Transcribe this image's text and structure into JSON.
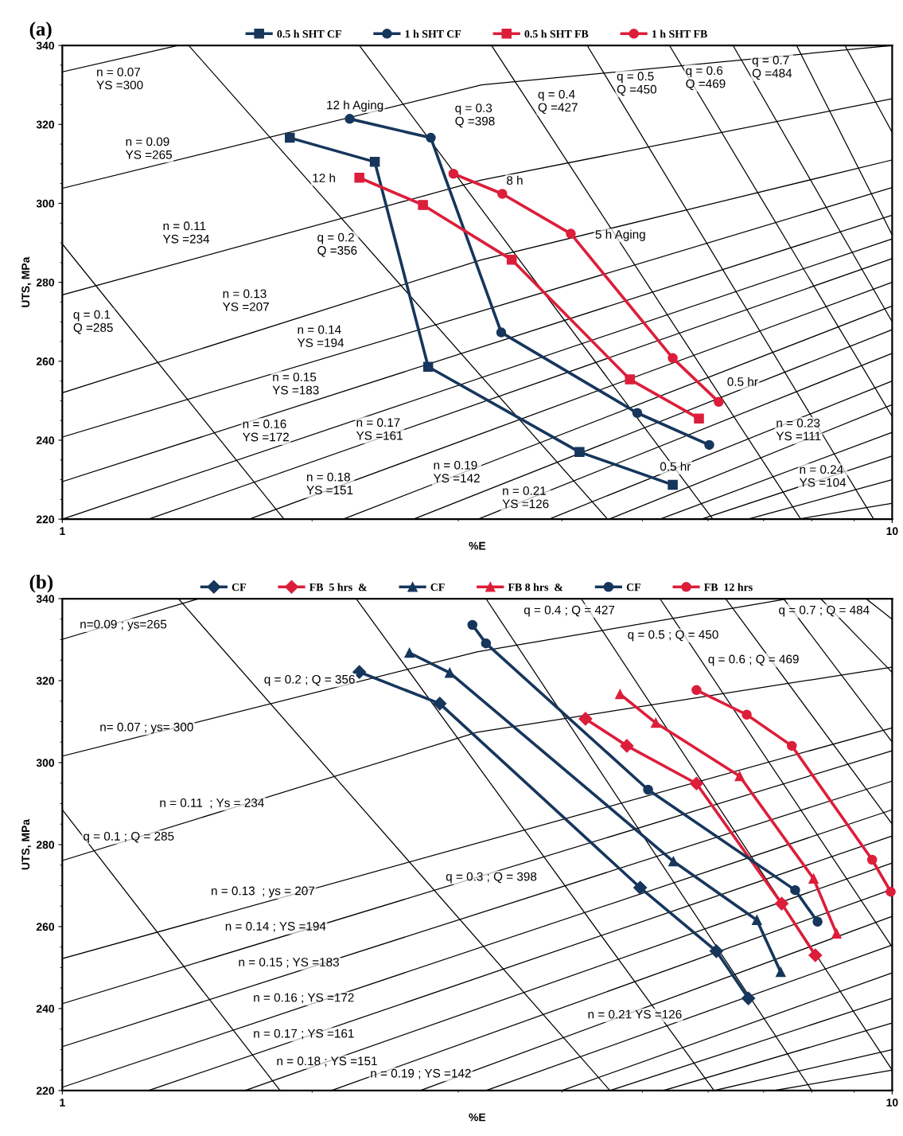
{
  "chart_data": [
    {
      "type": "line",
      "title": "(a)",
      "xlabel": "%E",
      "ylabel": "UTS, MPa",
      "log": "x",
      "xlim": [
        1,
        10
      ],
      "xticks": [
        1,
        10
      ],
      "ylim": [
        220,
        340
      ],
      "yticks": [
        220,
        240,
        260,
        280,
        300,
        320,
        340
      ],
      "legend": "top",
      "series": [
        {
          "name": "0.5 h SHT CF",
          "color": "#16365c",
          "marker": "square",
          "x": [
            1.88,
            2.38,
            2.76,
            4.2,
            5.44
          ],
          "values": [
            316.6,
            310.5,
            258.6,
            237,
            228.7
          ]
        },
        {
          "name": "1 h SHT CF",
          "color": "#16365c",
          "marker": "circle",
          "x": [
            2.22,
            2.78,
            3.38,
            4.93,
            6.02
          ],
          "values": [
            321.4,
            316.6,
            267.3,
            246.9,
            238.8
          ]
        },
        {
          "name": "0.5 h SHT FB",
          "color": "#dc1e3a",
          "marker": "square",
          "x": [
            2.28,
            2.72,
            3.48,
            4.83,
            5.85
          ],
          "values": [
            306.5,
            299.6,
            285.7,
            255.4,
            245.5
          ]
        },
        {
          "name": "1 h SHT FB",
          "color": "#dc1e3a",
          "marker": "circle",
          "x": [
            2.96,
            3.39,
            4.1,
            5.44,
            6.18
          ],
          "values": [
            307.5,
            302.4,
            292.3,
            260.8,
            249.7
          ]
        },
        {
          "color": "#000000",
          "marker": "none",
          "x": [
            1,
            1.38
          ],
          "values": [
            333.3,
            340
          ]
        },
        {
          "color": "#000000",
          "marker": "none",
          "x": [
            1,
            3.2,
            10
          ],
          "values": [
            303.8,
            330,
            340
          ]
        },
        {
          "color": "#000000",
          "marker": "none",
          "x": [
            1,
            3.2,
            10
          ],
          "values": [
            276.8,
            305.9,
            326.5
          ]
        },
        {
          "color": "#000000",
          "marker": "none",
          "x": [
            1,
            3.2,
            10
          ],
          "values": [
            252,
            285.7,
            311
          ]
        },
        {
          "color": "#000000",
          "marker": "none",
          "x": [
            1,
            10
          ],
          "values": [
            240.8,
            304
          ]
        },
        {
          "color": "#000000",
          "marker": "none",
          "x": [
            1,
            10
          ],
          "values": [
            229.5,
            297
          ]
        },
        {
          "color": "#000000",
          "marker": "none",
          "x": [
            1,
            10
          ],
          "values": [
            220,
            291
          ]
        },
        {
          "color": "#000000",
          "marker": "none",
          "x": [
            1.27,
            10
          ],
          "values": [
            220,
            286
          ]
        },
        {
          "color": "#000000",
          "marker": "none",
          "x": [
            1.68,
            10
          ],
          "values": [
            220,
            280
          ]
        },
        {
          "color": "#000000",
          "marker": "none",
          "x": [
            2.18,
            10
          ],
          "values": [
            220,
            274
          ]
        },
        {
          "color": "#000000",
          "marker": "none",
          "x": [
            2.65,
            10
          ],
          "values": [
            220,
            268
          ]
        },
        {
          "color": "#000000",
          "marker": "none",
          "x": [
            3.17,
            10
          ],
          "values": [
            220,
            262
          ]
        },
        {
          "color": "#000000",
          "marker": "none",
          "x": [
            3.86,
            10
          ],
          "values": [
            220,
            255
          ]
        },
        {
          "color": "#000000",
          "marker": "none",
          "x": [
            4.56,
            10
          ],
          "values": [
            220,
            249
          ]
        },
        {
          "color": "#000000",
          "marker": "none",
          "x": [
            5.25,
            10
          ],
          "values": [
            220,
            242
          ]
        },
        {
          "color": "#000000",
          "marker": "none",
          "x": [
            5.89,
            10
          ],
          "values": [
            220,
            236
          ]
        },
        {
          "color": "#000000",
          "marker": "none",
          "x": [
            6.7,
            10
          ],
          "values": [
            220,
            230
          ]
        },
        {
          "color": "#000000",
          "marker": "none",
          "x": [
            7.7,
            10
          ],
          "values": [
            220,
            224
          ]
        },
        {
          "color": "#000000",
          "marker": "none",
          "x": [
            1,
            1.85
          ],
          "values": [
            289.7,
            220
          ]
        },
        {
          "color": "#000000",
          "marker": "none",
          "x": [
            1.42,
            4.54
          ],
          "values": [
            340,
            220
          ]
        },
        {
          "color": "#000000",
          "marker": "none",
          "x": [
            2.28,
            6.08
          ],
          "values": [
            340,
            220
          ]
        },
        {
          "color": "#000000",
          "marker": "none",
          "x": [
            3.29,
            7.76
          ],
          "values": [
            340,
            220
          ]
        },
        {
          "color": "#000000",
          "marker": "none",
          "x": [
            4.29,
            9.5
          ],
          "values": [
            340,
            220
          ]
        },
        {
          "color": "#000000",
          "marker": "none",
          "x": [
            5.39,
            10
          ],
          "values": [
            340,
            246
          ]
        },
        {
          "color": "#000000",
          "marker": "none",
          "x": [
            6.43,
            10
          ],
          "values": [
            340,
            270
          ]
        },
        {
          "color": "#000000",
          "marker": "none",
          "x": [
            7.67,
            10
          ],
          "values": [
            340,
            292
          ]
        },
        {
          "color": "#000000",
          "marker": "none",
          "x": [
            8.77,
            10
          ],
          "values": [
            340,
            318
          ]
        }
      ],
      "annotations": [
        "n = 0.07\nYS =300",
        "n = 0.09\nYS =265",
        "n = 0.11\nYS =234",
        "n = 0.13\nYS =207",
        "n = 0.14\nYS =194",
        "n = 0.15\nYS =183",
        "n = 0.16\nYS =172",
        "n = 0.17\nYS =161",
        "n = 0.18\nYS =151",
        "n = 0.19\nYS =142",
        "n = 0.21\nYS =126",
        "n = 0.23\nYS =111",
        "n = 0.24\nYS =104",
        "q = 0.1\nQ =285",
        "q = 0.2\nQ =356",
        "q = 0.3\nQ =398",
        "q = 0.4\nQ =427",
        "q = 0.5\nQ =450",
        "q = 0.6\nQ =469",
        "q = 0.7\nQ =484",
        "12 h Aging",
        "12 h",
        "8 h",
        "5 h Aging",
        "0.5 hr",
        "0.5 hr"
      ]
    },
    {
      "type": "line",
      "title": "(b)",
      "xlabel": "%E",
      "ylabel": "UTS, MPa",
      "log": "x",
      "xlim": [
        1,
        10
      ],
      "xticks": [
        1,
        10
      ],
      "ylim": [
        220,
        340
      ],
      "yticks": [
        220,
        240,
        260,
        280,
        300,
        320,
        340
      ],
      "legend": "top",
      "series": [
        {
          "name": "CF",
          "color": "#16365c",
          "marker": "diamond",
          "x": [
            2.28,
            2.85,
            4.97,
            6.14,
            6.71
          ],
          "values": [
            322.1,
            314.4,
            269.5,
            254.0,
            242.5
          ]
        },
        {
          "name": "FB  5 hrs  &",
          "color": "#dc1e3a",
          "marker": "diamond",
          "x": [
            4.27,
            4.79,
            5.81,
            7.36,
            8.08
          ],
          "values": [
            310.7,
            304.1,
            294.9,
            265.6,
            253.0
          ]
        },
        {
          "name": "CF",
          "color": "#16365c",
          "marker": "triangle",
          "x": [
            2.62,
            2.93,
            5.45,
            6.87,
            7.34
          ],
          "values": [
            326.8,
            321.9,
            275.9,
            261.6,
            248.9
          ]
        },
        {
          "name": "FB 8 hrs  &",
          "color": "#dc1e3a",
          "marker": "triangle",
          "x": [
            4.7,
            5.19,
            6.55,
            8.04,
            8.57
          ],
          "values": [
            316.7,
            309.7,
            296.7,
            271.7,
            258.3
          ]
        },
        {
          "name": "CF",
          "color": "#16365c",
          "marker": "circle",
          "x": [
            3.12,
            3.24,
            5.08,
            7.64,
            8.13
          ],
          "values": [
            333.6,
            329.1,
            293.4,
            268.9,
            261.2
          ]
        },
        {
          "name": "FB  12 hrs",
          "color": "#dc1e3a",
          "marker": "circle",
          "x": [
            5.81,
            6.68,
            7.57,
            9.46,
            9.96
          ],
          "values": [
            317.7,
            311.7,
            304.1,
            276.3,
            268.5
          ]
        },
        {
          "color": "#000000",
          "marker": "none",
          "x": [
            1,
            1.46
          ],
          "values": [
            330.1,
            340
          ]
        },
        {
          "color": "#000000",
          "marker": "none",
          "x": [
            1,
            3.16,
            7.5
          ],
          "values": [
            301.6,
            327,
            340
          ]
        },
        {
          "color": "#000000",
          "marker": "none",
          "x": [
            1,
            3.16,
            10
          ],
          "values": [
            276.1,
            307.4,
            323.3
          ]
        },
        {
          "color": "#000000",
          "marker": "none",
          "x": [
            1,
            10
          ],
          "values": [
            252.2,
            308.5
          ]
        },
        {
          "color": "#000000",
          "marker": "none",
          "x": [
            1,
            10
          ],
          "values": [
            241.2,
            302.9
          ]
        },
        {
          "color": "#000000",
          "marker": "none",
          "x": [
            1,
            10
          ],
          "values": [
            230.7,
            295.5
          ]
        },
        {
          "color": "#000000",
          "marker": "none",
          "x": [
            1,
            10
          ],
          "values": [
            220.8,
            288.5
          ]
        },
        {
          "color": "#000000",
          "marker": "none",
          "x": [
            1.27,
            10
          ],
          "values": [
            220,
            282.1
          ]
        },
        {
          "color": "#000000",
          "marker": "none",
          "x": [
            1.66,
            10
          ],
          "values": [
            220,
            275.5
          ]
        },
        {
          "color": "#000000",
          "marker": "none",
          "x": [
            2.11,
            10
          ],
          "values": [
            220,
            269.1
          ]
        },
        {
          "color": "#000000",
          "marker": "none",
          "x": [
            2.7,
            10
          ],
          "values": [
            220,
            262.5
          ]
        },
        {
          "color": "#000000",
          "marker": "none",
          "x": [
            3.24,
            10
          ],
          "values": [
            220,
            255.5
          ]
        },
        {
          "color": "#000000",
          "marker": "none",
          "x": [
            4.0,
            10
          ],
          "values": [
            220,
            248.7
          ]
        },
        {
          "color": "#000000",
          "marker": "none",
          "x": [
            4.57,
            10
          ],
          "values": [
            220,
            242.5
          ]
        },
        {
          "color": "#000000",
          "marker": "none",
          "x": [
            5.3,
            10
          ],
          "values": [
            220,
            236.5
          ]
        },
        {
          "color": "#000000",
          "marker": "none",
          "x": [
            6.1,
            10
          ],
          "values": [
            220,
            230
          ]
        },
        {
          "color": "#000000",
          "marker": "none",
          "x": [
            7.2,
            10
          ],
          "values": [
            220,
            225
          ]
        },
        {
          "color": "#000000",
          "marker": "none",
          "x": [
            1,
            1.83
          ],
          "values": [
            288.5,
            220
          ]
        },
        {
          "color": "#000000",
          "marker": "none",
          "x": [
            1.38,
            4.57
          ],
          "values": [
            340,
            220
          ]
        },
        {
          "color": "#000000",
          "marker": "none",
          "x": [
            2.26,
            6.1
          ],
          "values": [
            340,
            220
          ]
        },
        {
          "color": "#000000",
          "marker": "none",
          "x": [
            3.24,
            8.0
          ],
          "values": [
            340,
            220
          ]
        },
        {
          "color": "#000000",
          "marker": "none",
          "x": [
            4.22,
            10
          ],
          "values": [
            340,
            225
          ]
        },
        {
          "color": "#000000",
          "marker": "none",
          "x": [
            5.25,
            10
          ],
          "values": [
            340,
            255
          ]
        },
        {
          "color": "#000000",
          "marker": "none",
          "x": [
            6.3,
            10
          ],
          "values": [
            340,
            285
          ]
        },
        {
          "color": "#000000",
          "marker": "none",
          "x": [
            7.4,
            10
          ],
          "values": [
            340,
            305
          ]
        },
        {
          "color": "#000000",
          "marker": "none",
          "x": [
            8.2,
            10
          ],
          "values": [
            340,
            322
          ]
        },
        {
          "color": "#000000",
          "marker": "none",
          "x": [
            9.3,
            10
          ],
          "values": [
            340,
            335
          ]
        }
      ],
      "annotations": [
        "n=0.09 ; ys=265",
        "n= 0.07 ; ys= 300",
        "n = 0.11  ; Ys = 234",
        "n = 0.13  ; ys = 207",
        "n = 0.14 ; YS =194",
        "n = 0.15 ; YS =183",
        "n = 0.16 ; YS =172",
        "n = 0.17 ; YS =161",
        "n = 0.18 ; YS =151",
        "n = 0.19 ; YS =142",
        "n = 0.21 YS =126",
        "q = 0.1 ; Q = 285",
        "q = 0.2 ; Q = 356",
        "q = 0.3 ; Q = 398",
        "q = 0.4 ; Q = 427",
        "q = 0.5 ; Q = 450",
        "q = 0.6 ; Q = 469",
        "q = 0.7 ; Q = 484"
      ]
    }
  ]
}
